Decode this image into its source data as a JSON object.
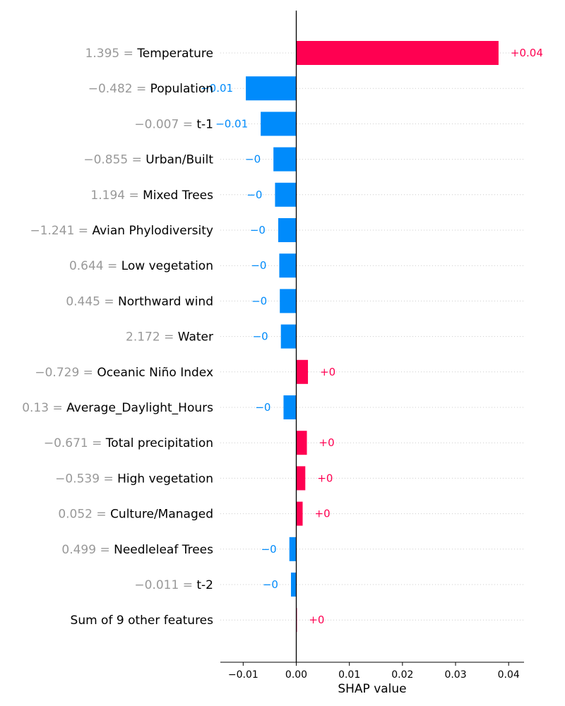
{
  "chart_data": {
    "type": "bar",
    "xlabel": "SHAP value",
    "xlim": [
      -0.0143,
      0.0429
    ],
    "x_ticks": [
      {
        "value": -0.01,
        "label": "−0.01"
      },
      {
        "value": 0.0,
        "label": "0.00"
      },
      {
        "value": 0.01,
        "label": "0.01"
      },
      {
        "value": 0.02,
        "label": "0.02"
      },
      {
        "value": 0.03,
        "label": "0.03"
      },
      {
        "value": 0.04,
        "label": "0.04"
      }
    ],
    "colors": {
      "positive": "#ff0051",
      "negative": "#008bfb",
      "grid": "#cccccc"
    },
    "features": [
      {
        "value_text": "1.395",
        "name": "Temperature",
        "shap": 0.0381,
        "label": "+0.04"
      },
      {
        "value_text": "−0.482",
        "name": "Population",
        "shap": -0.0095,
        "label": "−0.01"
      },
      {
        "value_text": "−0.007",
        "name": "t-1",
        "shap": -0.0067,
        "label": "−0.01"
      },
      {
        "value_text": "−0.855",
        "name": "Urban/Built",
        "shap": -0.0043,
        "label": "−0"
      },
      {
        "value_text": "1.194",
        "name": "Mixed Trees",
        "shap": -0.004,
        "label": "−0"
      },
      {
        "value_text": "−1.241",
        "name": "Avian Phylodiversity",
        "shap": -0.0034,
        "label": "−0"
      },
      {
        "value_text": "0.644",
        "name": "Low vegetation",
        "shap": -0.0032,
        "label": "−0"
      },
      {
        "value_text": "0.445",
        "name": "Northward wind",
        "shap": -0.0031,
        "label": "−0"
      },
      {
        "value_text": "2.172",
        "name": "Water",
        "shap": -0.0029,
        "label": "−0"
      },
      {
        "value_text": "−0.729",
        "name": "Oceanic Niño Index",
        "shap": 0.0022,
        "label": "+0"
      },
      {
        "value_text": "0.13",
        "name": "Average_Daylight_Hours",
        "shap": -0.0024,
        "label": "−0"
      },
      {
        "value_text": "−0.671",
        "name": "Total precipitation",
        "shap": 0.002,
        "label": "+0"
      },
      {
        "value_text": "−0.539",
        "name": "High vegetation",
        "shap": 0.0017,
        "label": "+0"
      },
      {
        "value_text": "0.052",
        "name": "Culture/Managed",
        "shap": 0.0012,
        "label": "+0"
      },
      {
        "value_text": "0.499",
        "name": "Needleleaf Trees",
        "shap": -0.0013,
        "label": "−0"
      },
      {
        "value_text": "−0.011",
        "name": "t-2",
        "shap": -0.001,
        "label": "−0"
      },
      {
        "value_text": "",
        "name": "Sum of 9 other features",
        "shap": 0.0001,
        "label": "+0"
      }
    ]
  }
}
